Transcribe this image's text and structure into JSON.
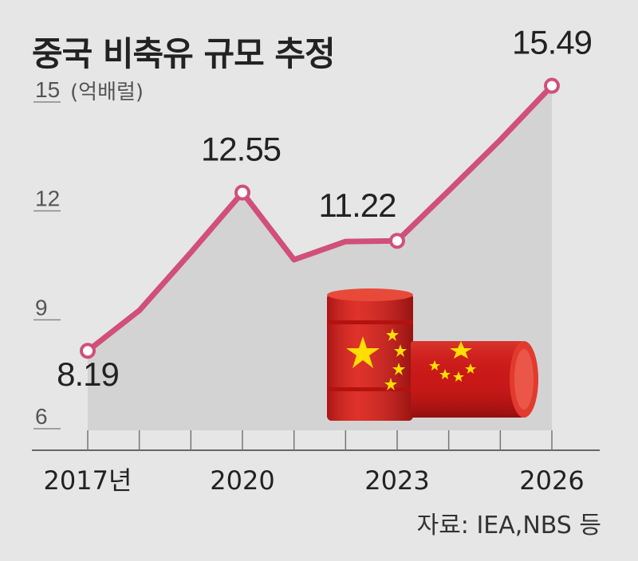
{
  "title": "중국 비축유 규모 추정",
  "source": "자료: IEA,NBS 등",
  "chart_data": {
    "type": "area",
    "unit": "(억배럴)",
    "x": [
      2017,
      2018,
      2019,
      2020,
      2021,
      2022,
      2023,
      2024,
      2025,
      2026
    ],
    "values": [
      8.19,
      9.3,
      10.9,
      12.55,
      10.7,
      11.2,
      11.22,
      12.6,
      14.0,
      15.49
    ],
    "labeled_points": [
      {
        "x": 2017,
        "label": "8.19"
      },
      {
        "x": 2020,
        "label": "12.55"
      },
      {
        "x": 2023,
        "label": "11.22"
      },
      {
        "x": 2026,
        "label": "15.49"
      }
    ],
    "ylim": [
      6,
      15
    ],
    "y_ticks": [
      {
        "value": 15,
        "label": "15"
      },
      {
        "value": 12,
        "label": "12"
      },
      {
        "value": 9,
        "label": "9"
      },
      {
        "value": 6,
        "label": "6"
      }
    ],
    "x_tick_labels": [
      {
        "x": 2017,
        "label": "2017년"
      },
      {
        "x": 2020,
        "label": "2020"
      },
      {
        "x": 2023,
        "label": "2023"
      },
      {
        "x": 2026,
        "label": "2026"
      }
    ],
    "colors": {
      "line": "#d0507a",
      "area": "#d3d3d3",
      "background": "#e6e6e6"
    }
  },
  "image": {
    "icon": "oil-barrels-china-flag-icon"
  }
}
